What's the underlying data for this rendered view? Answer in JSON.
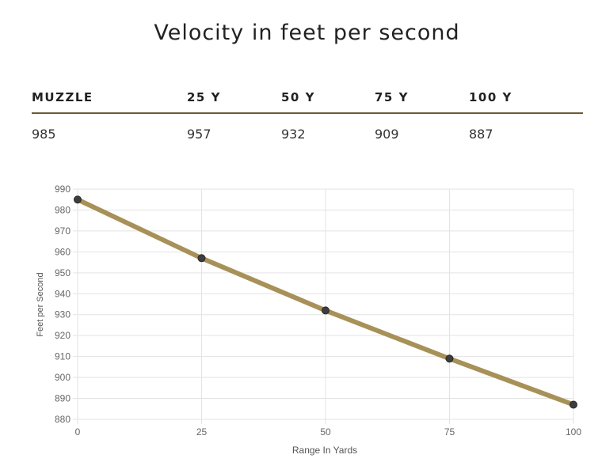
{
  "title": "Velocity in feet per second",
  "table": {
    "headers": [
      "MUZZLE",
      "25 Y",
      "50 Y",
      "75 Y",
      "100 Y"
    ],
    "values": [
      "985",
      "957",
      "932",
      "909",
      "887"
    ]
  },
  "colors": {
    "line": "#a89158",
    "point": "#3d3d3d",
    "grid": "#e3e3e3",
    "rule": "#6b5a34"
  },
  "chart_data": {
    "type": "line",
    "x": [
      0,
      25,
      50,
      75,
      100
    ],
    "series": [
      {
        "values": [
          985,
          957,
          932,
          909,
          887
        ]
      }
    ],
    "xlabel": "Range In Yards",
    "ylabel": "Feet per Second",
    "xlim": [
      0,
      100
    ],
    "ylim": [
      880,
      990
    ],
    "xticks": [
      0,
      25,
      50,
      75,
      100
    ],
    "yticks": [
      880,
      890,
      900,
      910,
      920,
      930,
      940,
      950,
      960,
      970,
      980,
      990
    ],
    "grid": true
  }
}
